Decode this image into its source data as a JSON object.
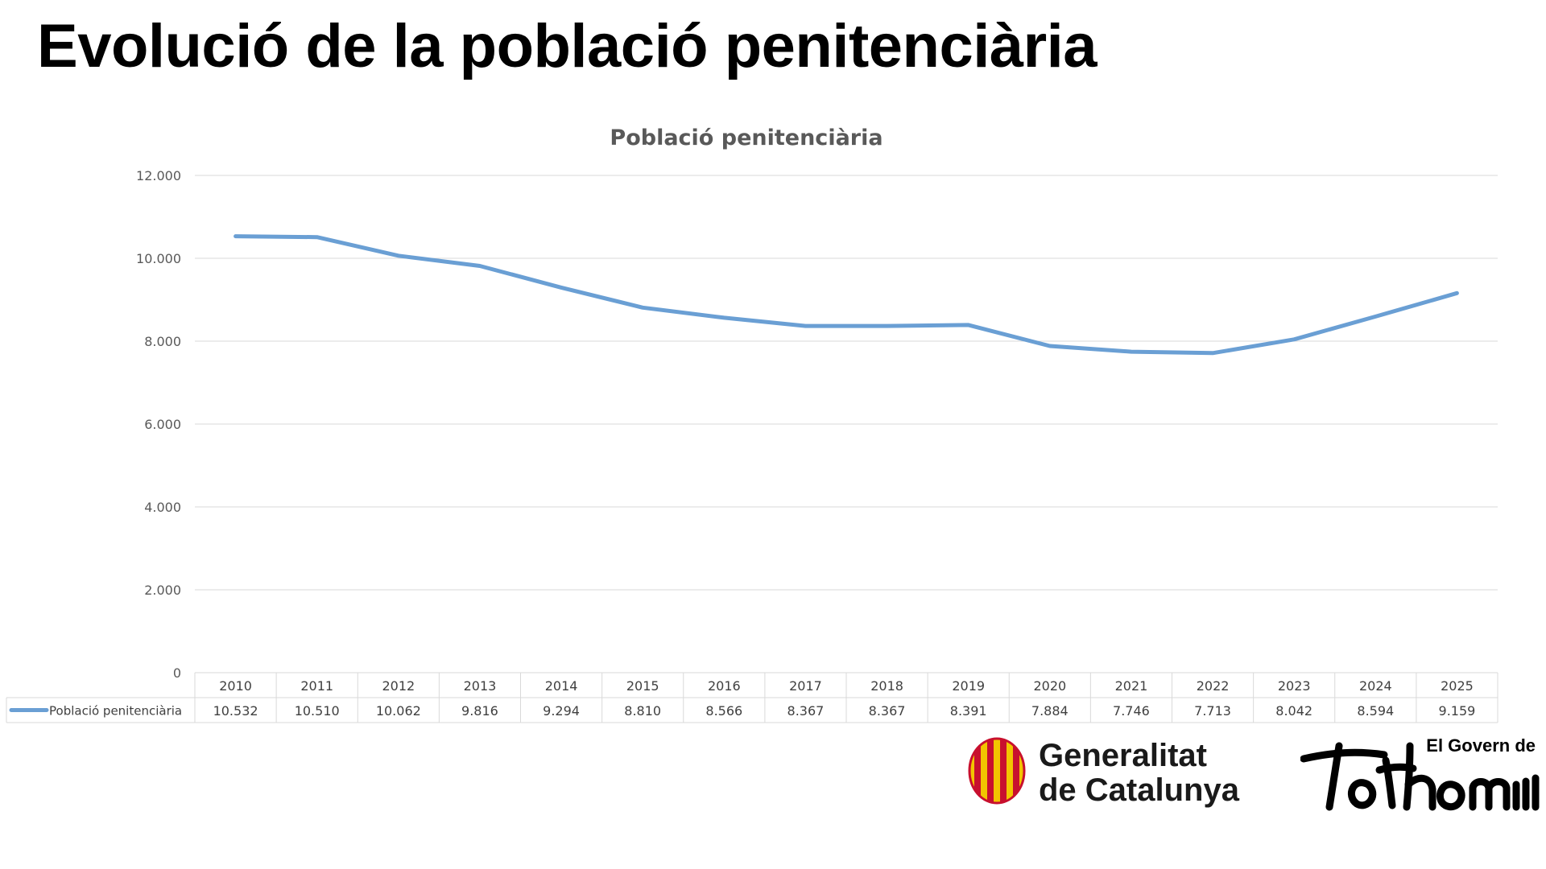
{
  "slide": {
    "title": "Evolució de la població penitenciària"
  },
  "chart_data": {
    "type": "line",
    "title": "Població penitenciària",
    "categories": [
      "2010",
      "2011",
      "2012",
      "2013",
      "2014",
      "2015",
      "2016",
      "2017",
      "2018",
      "2019",
      "2020",
      "2021",
      "2022",
      "2023",
      "2024",
      "2025"
    ],
    "series": [
      {
        "name": "Població penitenciària",
        "values": [
          10532,
          10510,
          10062,
          9816,
          9294,
          8810,
          8566,
          8367,
          8367,
          8391,
          7884,
          7746,
          7713,
          8042,
          8594,
          9159
        ],
        "labels": [
          "10.532",
          "10.510",
          "10.062",
          "9.816",
          "9.294",
          "8.810",
          "8.566",
          "8.367",
          "8.367",
          "8.391",
          "7.884",
          "7.746",
          "7.713",
          "8.042",
          "8.594",
          "9.159"
        ]
      }
    ],
    "ylim": [
      0,
      12000
    ],
    "yticks": [
      0,
      2000,
      4000,
      6000,
      8000,
      10000,
      12000
    ],
    "ytick_labels": [
      "0",
      "2.000",
      "4.000",
      "6.000",
      "8.000",
      "10.000",
      "12.000"
    ],
    "grid": true,
    "data_table": true,
    "line_color": "#6a9fd4",
    "grid_color": "#d9d9d9"
  },
  "logos": {
    "generalitat": {
      "line1": "Generalitat",
      "line2": "de Catalunya",
      "color": "#c8102e"
    },
    "govern": {
      "small": "El Govern de",
      "script": "tothom"
    }
  }
}
